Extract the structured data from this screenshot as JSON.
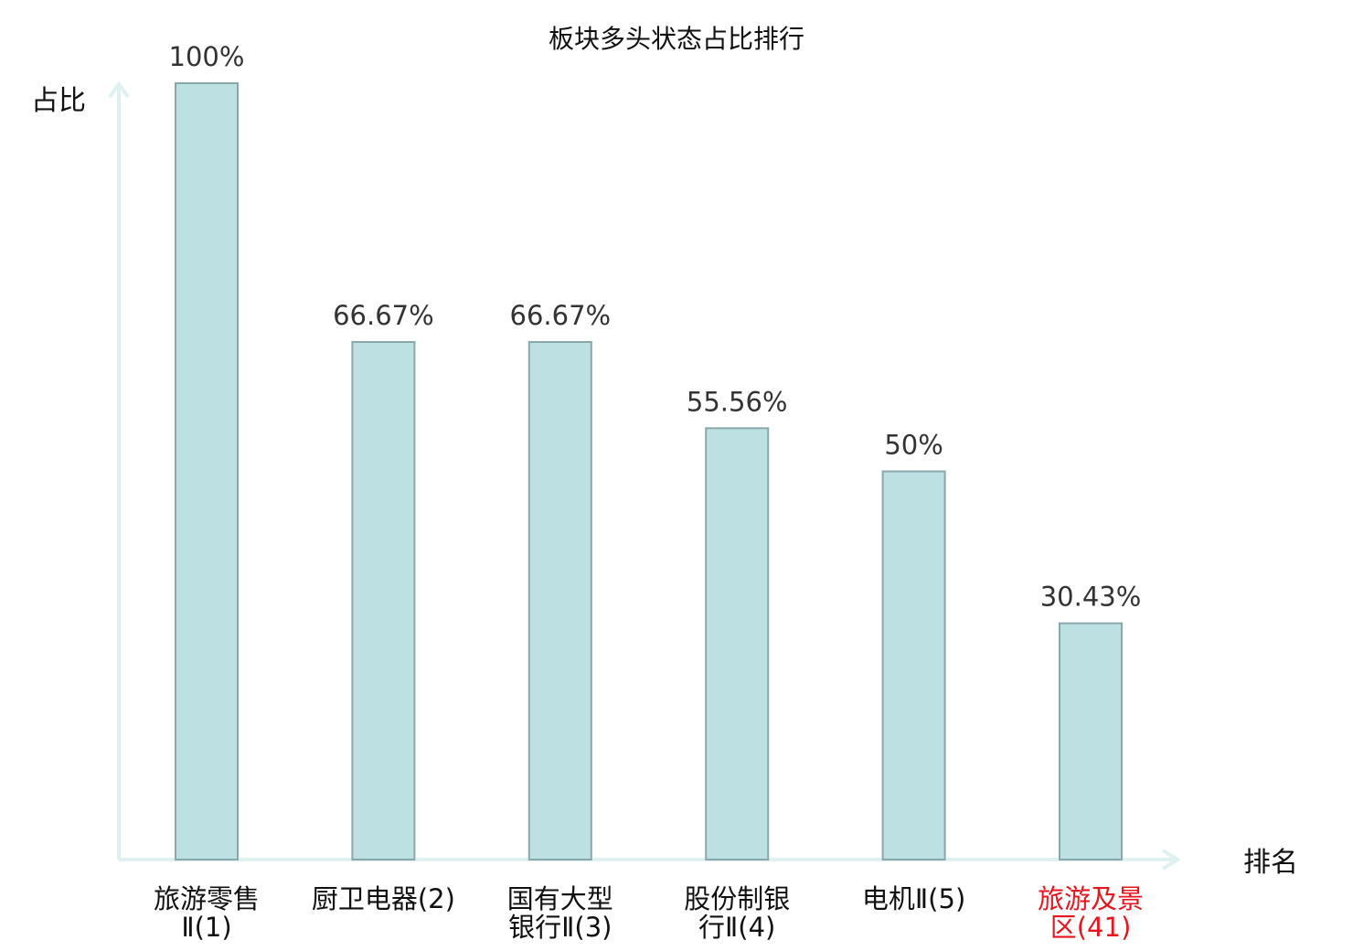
{
  "chart_data": {
    "type": "bar",
    "title": "板块多头状态占比排行",
    "ylabel": "占比",
    "xlabel": "排名",
    "ylim": [
      0,
      100
    ],
    "categories": [
      {
        "lines": [
          "旅游零售",
          "Ⅱ(1)"
        ],
        "highlight": false
      },
      {
        "lines": [
          "厨卫电器(2)"
        ],
        "highlight": false
      },
      {
        "lines": [
          "国有大型",
          "银行Ⅱ(3)"
        ],
        "highlight": false
      },
      {
        "lines": [
          "股份制银",
          "行Ⅱ(4)"
        ],
        "highlight": false
      },
      {
        "lines": [
          "电机Ⅱ(5)"
        ],
        "highlight": false
      },
      {
        "lines": [
          "旅游及景",
          "区(41)"
        ],
        "highlight": true
      }
    ],
    "values": [
      100,
      66.67,
      66.67,
      55.56,
      50,
      30.43
    ],
    "value_labels": [
      "100%",
      "66.67%",
      "66.67%",
      "55.56%",
      "50%",
      "30.43%"
    ],
    "grid": false,
    "legend": "none",
    "colors": {
      "bar_fill": "#bde0e3",
      "bar_stroke": "#8aa8ab",
      "axis": "#dff1ef",
      "label": "#333333",
      "category": "#111111",
      "highlight": "#e8141e"
    }
  }
}
